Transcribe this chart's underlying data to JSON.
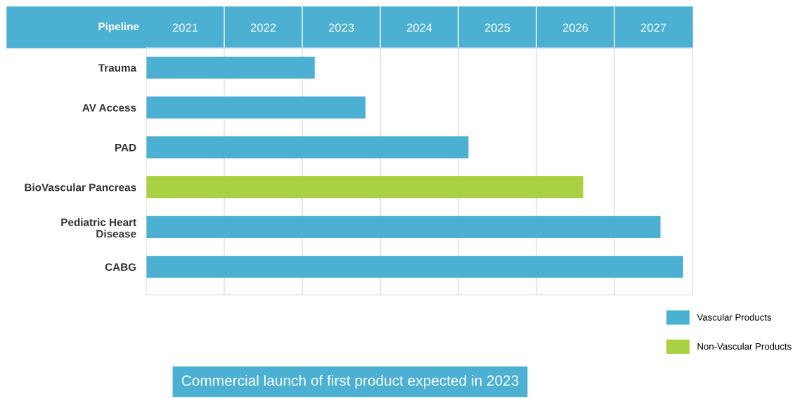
{
  "chart_data": {
    "type": "bar",
    "orientation": "horizontal",
    "title": "Pipeline",
    "categories": [
      "Trauma",
      "AV Access",
      "PAD",
      "BioVascular Pancreas",
      "Pediatric Heart\nDisease",
      "CABG"
    ],
    "series": [
      {
        "name": "Vascular Products",
        "color": "#4bb0d2",
        "values": [
          2023.16,
          2023.81,
          2025.13,
          null,
          2027.59,
          2027.88
        ]
      },
      {
        "name": "Non-Vascular Products",
        "color": "#a9d142",
        "values": [
          null,
          null,
          null,
          2026.6,
          null,
          null
        ]
      }
    ],
    "xlim": [
      2021,
      2028
    ],
    "xticks": [
      {
        "value": 2021.5,
        "label": "2021"
      },
      {
        "value": 2022.5,
        "label": "2022"
      },
      {
        "value": 2023.5,
        "label": "2023"
      },
      {
        "value": 2024.5,
        "label": "2024"
      },
      {
        "value": 2025.5,
        "label": "2025"
      },
      {
        "value": 2026.5,
        "label": "2026"
      },
      {
        "value": 2027.5,
        "label": "2027"
      },
      {
        "value": 2022,
        "label": null
      },
      {
        "value": 2023,
        "label": null
      },
      {
        "value": 2024,
        "label": null
      },
      {
        "value": 2025,
        "label": null
      },
      {
        "value": 2026,
        "label": null
      },
      {
        "value": 2027,
        "label": null
      }
    ],
    "grid": "x",
    "legend": "bottom right",
    "annotations": [
      "Commercial launch of first product expected in 2023"
    ]
  }
}
